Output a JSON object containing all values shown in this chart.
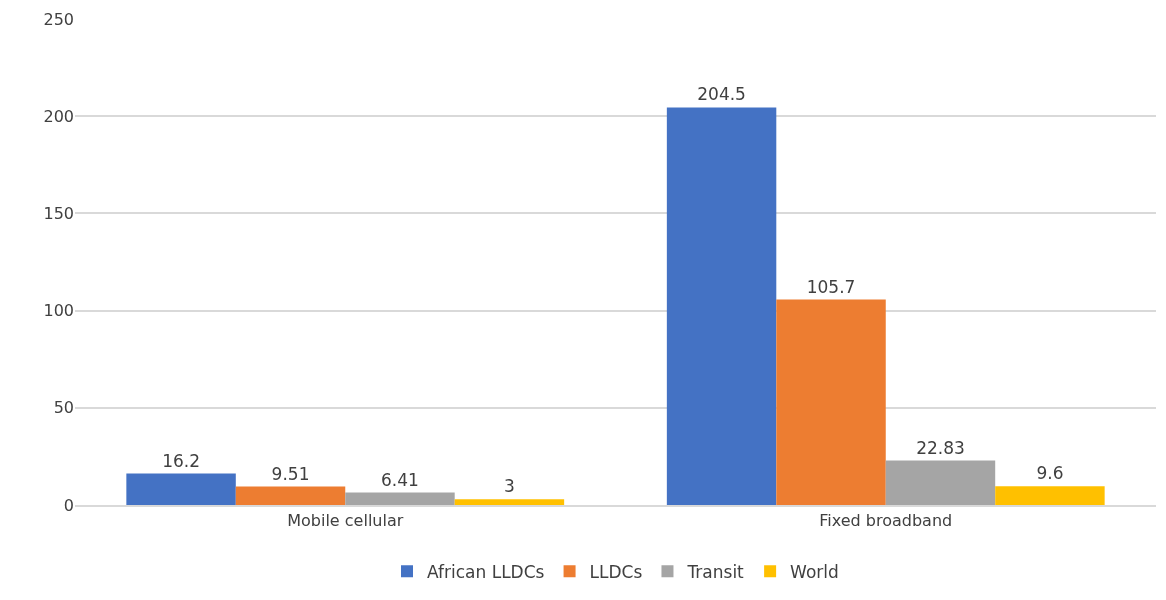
{
  "chart_data": {
    "type": "bar",
    "categories": [
      "Mobile cellular",
      "Fixed broadband"
    ],
    "series": [
      {
        "name": "African LLDCs",
        "color": "#4472c4",
        "values": [
          16.2,
          204.5
        ]
      },
      {
        "name": "LLDCs",
        "color": "#ed7d31",
        "values": [
          9.51,
          105.7
        ]
      },
      {
        "name": "Transit",
        "color": "#a5a5a5",
        "values": [
          6.41,
          22.83
        ]
      },
      {
        "name": "World",
        "color": "#ffc000",
        "values": [
          3,
          9.6
        ]
      }
    ],
    "ylim": [
      0,
      250
    ],
    "yticks": [
      0,
      50,
      100,
      150,
      200,
      250
    ],
    "grid": "y",
    "legend": "bottom",
    "data_labels": true
  }
}
